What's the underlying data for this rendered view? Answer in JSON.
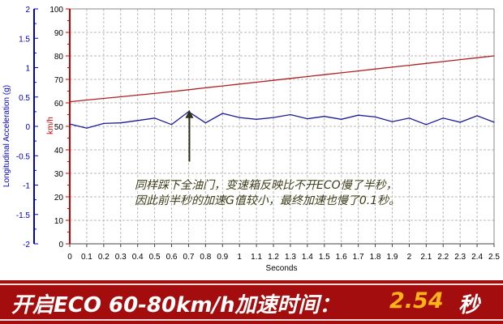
{
  "chart_data": {
    "type": "line",
    "x": [
      0,
      0.1,
      0.2,
      0.3,
      0.4,
      0.5,
      0.6,
      0.7,
      0.8,
      0.9,
      1,
      1.1,
      1.2,
      1.3,
      1.4,
      1.5,
      1.6,
      1.7,
      1.8,
      1.9,
      2,
      2.1,
      2.2,
      2.3,
      2.4,
      2.5
    ],
    "xticks": [
      "0",
      "0.1",
      "0.2",
      "0.3",
      "0.4",
      "0.5",
      "0.6",
      "0.7",
      "0.8",
      "0.9",
      "1",
      "1.1",
      "1.2",
      "1.3",
      "1.4",
      "1.5",
      "1.6",
      "1.7",
      "1.8",
      "1.9",
      "2",
      "2.1",
      "2.2",
      "2.3",
      "2.4",
      "2.5"
    ],
    "xlabel": "Seconds",
    "xlim": [
      0,
      2.5
    ],
    "left_axis": {
      "label": "Longitudinal Acceleration (g)",
      "ticks": [
        "2",
        "1.5",
        "1",
        "0.5",
        "0",
        "-0.5",
        "-1",
        "-1.5",
        "-2"
      ],
      "ylim": [
        -2,
        2
      ],
      "color": "#0000cc"
    },
    "right_axis": {
      "label": "km/h",
      "ticks": [
        "100",
        "90",
        "80",
        "70",
        "60",
        "50",
        "40",
        "30",
        "20",
        "10",
        "0"
      ],
      "ylim": [
        0,
        100
      ],
      "color": "#cc0000"
    },
    "series": [
      {
        "axis": "right",
        "color": "#b02020",
        "values": [
          60.5,
          61.2,
          61.9,
          62.6,
          63.3,
          64.0,
          64.8,
          65.6,
          66.4,
          67.2,
          68.0,
          68.8,
          69.6,
          70.4,
          71.2,
          72.0,
          72.8,
          73.6,
          74.4,
          75.2,
          76.0,
          76.8,
          77.6,
          78.4,
          79.2,
          80.0
        ]
      },
      {
        "axis": "left",
        "color": "#1a1a9a",
        "values": [
          0.04,
          -0.03,
          0.05,
          0.06,
          0.1,
          0.14,
          0.03,
          0.25,
          0.06,
          0.22,
          0.15,
          0.12,
          0.15,
          0.2,
          0.13,
          0.17,
          0.12,
          0.19,
          0.16,
          0.08,
          0.14,
          0.03,
          0.14,
          0.07,
          0.18,
          0.07
        ]
      }
    ],
    "annotation": {
      "lines": [
        "同样踩下全油门，变速箱反映比不开ECO慢了半秒，",
        "因此前半秒的加速G值较小，最终加速也慢了0.1秒。"
      ],
      "arrow_x": 0.7,
      "arrow_from_kmh": 35,
      "arrow_to_kmh": 57
    },
    "grid": true
  },
  "banner": {
    "label": "开启ECO 60-80km/h加速时间：",
    "value": "2.54",
    "unit": "秒"
  },
  "colors": {
    "banner_bg": "#a40d0d",
    "value_color": "#ffb21a",
    "annotation_color": "#3d3d1a"
  }
}
